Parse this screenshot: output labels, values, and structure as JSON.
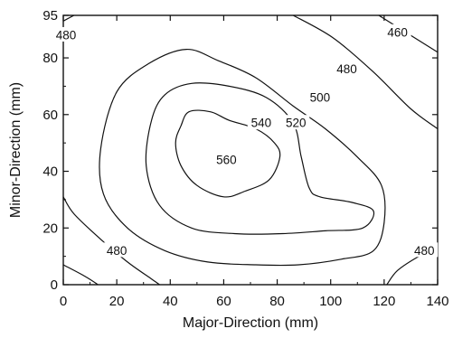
{
  "chart_data": {
    "type": "contour",
    "xlabel": "Major-Direction (mm)",
    "ylabel": "Minor-Direction (mm)",
    "xlim": [
      0,
      140
    ],
    "ylim": [
      0,
      95
    ],
    "xticks": [
      "0",
      "20",
      "40",
      "60",
      "80",
      "100",
      "120",
      "140"
    ],
    "yticks": [
      "0",
      "20",
      "40",
      "60",
      "80",
      "95"
    ],
    "contours": [
      {
        "level": 460,
        "points": [
          [
            118,
            95
          ],
          [
            140,
            82
          ]
        ]
      },
      {
        "level": 480,
        "points": [
          [
            0,
            93
          ],
          [
            4,
            95
          ]
        ]
      },
      {
        "level": 480,
        "points": [
          [
            86,
            95
          ],
          [
            101,
            87
          ],
          [
            116,
            75
          ],
          [
            130,
            62
          ],
          [
            140,
            55
          ]
        ]
      },
      {
        "level": 480,
        "points": [
          [
            0,
            31
          ],
          [
            4,
            25
          ],
          [
            14,
            16
          ],
          [
            24,
            8
          ],
          [
            33,
            2
          ],
          [
            36,
            0
          ]
        ]
      },
      {
        "level": 480,
        "points": [
          [
            0,
            7
          ],
          [
            8,
            3
          ],
          [
            13,
            0
          ]
        ]
      },
      {
        "level": 480,
        "points": [
          [
            121,
            0
          ],
          [
            125,
            5
          ],
          [
            133,
            10
          ],
          [
            140,
            13
          ]
        ]
      },
      {
        "level": 500,
        "closed": true,
        "points": [
          [
            46,
            83
          ],
          [
            58,
            79
          ],
          [
            72,
            73
          ],
          [
            86,
            63
          ],
          [
            98,
            55
          ],
          [
            110,
            45
          ],
          [
            119,
            35
          ],
          [
            120,
            22
          ],
          [
            116,
            12
          ],
          [
            104,
            9
          ],
          [
            88,
            7
          ],
          [
            72,
            7
          ],
          [
            54,
            8
          ],
          [
            38,
            12
          ],
          [
            24,
            20
          ],
          [
            15,
            32
          ],
          [
            14,
            48
          ],
          [
            20,
            68
          ],
          [
            32,
            78
          ]
        ]
      },
      {
        "level": 520,
        "closed": true,
        "points": [
          [
            48,
            71
          ],
          [
            62,
            70
          ],
          [
            76,
            66
          ],
          [
            86,
            57
          ],
          [
            89,
            45
          ],
          [
            92,
            34
          ],
          [
            96,
            31
          ],
          [
            108,
            29
          ],
          [
            116,
            26
          ],
          [
            112,
            20
          ],
          [
            98,
            19
          ],
          [
            82,
            18
          ],
          [
            64,
            18
          ],
          [
            48,
            20
          ],
          [
            36,
            28
          ],
          [
            31,
            42
          ],
          [
            33,
            58
          ],
          [
            38,
            67
          ]
        ]
      },
      {
        "level": 540,
        "closed": true,
        "points": [
          [
            47,
            61
          ],
          [
            55,
            61
          ],
          [
            62,
            58
          ],
          [
            72,
            55
          ],
          [
            79,
            50
          ],
          [
            81,
            45
          ],
          [
            77,
            37
          ],
          [
            68,
            33
          ],
          [
            60,
            31
          ],
          [
            50,
            35
          ],
          [
            44,
            42
          ],
          [
            42,
            50
          ],
          [
            44,
            56
          ]
        ]
      }
    ],
    "labels": [
      {
        "text": "480",
        "x": 1,
        "y": 88
      },
      {
        "text": "460",
        "x": 125,
        "y": 89
      },
      {
        "text": "480",
        "x": 106,
        "y": 76
      },
      {
        "text": "500",
        "x": 96,
        "y": 66
      },
      {
        "text": "540",
        "x": 74,
        "y": 57
      },
      {
        "text": "520",
        "x": 87,
        "y": 57
      },
      {
        "text": "560",
        "x": 61,
        "y": 44
      },
      {
        "text": "480",
        "x": 20,
        "y": 12
      },
      {
        "text": "480",
        "x": 135,
        "y": 12
      }
    ]
  }
}
